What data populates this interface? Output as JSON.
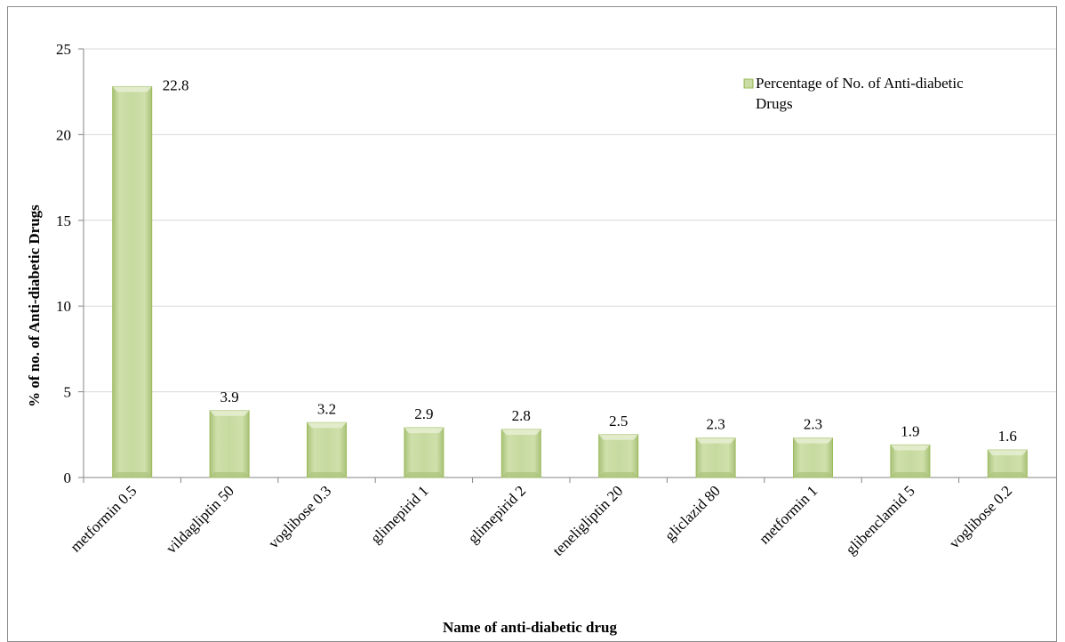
{
  "chart_data": {
    "type": "bar",
    "title": "",
    "xlabel": "Name of anti-diabetic drug",
    "ylabel": "% of no. of Anti-diabetic Drugs",
    "ylim": [
      0,
      25
    ],
    "yticks": [
      0,
      5,
      10,
      15,
      20,
      25
    ],
    "ytick_labels": [
      "0",
      "5",
      "10",
      "15",
      "20",
      "25"
    ],
    "categories": [
      "metformin 0.5",
      "vildagliptin 50",
      "voglibose 0.3",
      "glimepirid 1",
      "glimepirid 2",
      "teneligliptin 20",
      "gliclazid 80",
      "metformin 1",
      "glibenclamid 5",
      "voglibose 0.2"
    ],
    "series": [
      {
        "name": "Percentage of  No. of Anti-diabetic Drugs",
        "values": [
          22.8,
          3.9,
          3.2,
          2.9,
          2.8,
          2.5,
          2.3,
          2.3,
          1.9,
          1.6
        ],
        "data_labels": [
          "22.8",
          "3.9",
          "3.2",
          "2.9",
          "2.8",
          "2.5",
          "2.3",
          "2.3",
          "1.9",
          "1.6"
        ]
      }
    ],
    "legend": {
      "position": "top-right",
      "lines": [
        "Percentage of  No. of Anti-diabetic",
        "Drugs"
      ]
    },
    "grid": true,
    "colors": {
      "bar_fill": "#c3d69b",
      "bar_edge": "#9bbb59",
      "bar_highlight": "#e6efd2",
      "grid": "#d9d9d9",
      "axis": "#868686"
    }
  }
}
